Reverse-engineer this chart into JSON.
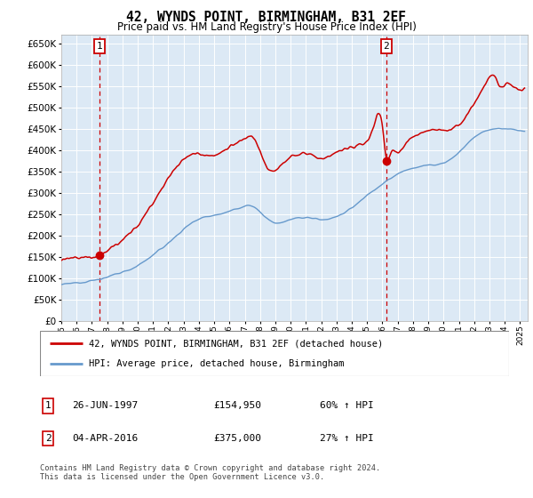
{
  "title": "42, WYNDS POINT, BIRMINGHAM, B31 2EF",
  "subtitle": "Price paid vs. HM Land Registry's House Price Index (HPI)",
  "yticks": [
    0,
    50000,
    100000,
    150000,
    200000,
    250000,
    300000,
    350000,
    400000,
    450000,
    500000,
    550000,
    600000,
    650000
  ],
  "ylim": [
    0,
    670000
  ],
  "xlim_start": 1995.0,
  "xlim_end": 2025.5,
  "background_color": "#dce9f5",
  "sale1_date": 1997.49,
  "sale1_price": 154950,
  "sale2_date": 2016.26,
  "sale2_price": 375000,
  "sale1_label": "26-JUN-1997",
  "sale1_amount": "£154,950",
  "sale1_hpi": "60% ↑ HPI",
  "sale2_label": "04-APR-2016",
  "sale2_amount": "£375,000",
  "sale2_hpi": "27% ↑ HPI",
  "legend_line1": "42, WYNDS POINT, BIRMINGHAM, B31 2EF (detached house)",
  "legend_line2": "HPI: Average price, detached house, Birmingham",
  "footer": "Contains HM Land Registry data © Crown copyright and database right 2024.\nThis data is licensed under the Open Government Licence v3.0.",
  "red_color": "#cc0000",
  "blue_color": "#6699cc",
  "seed": 12345,
  "blue_keypoints": [
    [
      1995.0,
      85000
    ],
    [
      1996.0,
      90000
    ],
    [
      1997.0,
      95000
    ],
    [
      1998.0,
      103000
    ],
    [
      1999.0,
      115000
    ],
    [
      2000.0,
      130000
    ],
    [
      2001.0,
      155000
    ],
    [
      2002.0,
      183000
    ],
    [
      2003.0,
      215000
    ],
    [
      2004.0,
      240000
    ],
    [
      2005.0,
      248000
    ],
    [
      2006.0,
      258000
    ],
    [
      2007.0,
      268000
    ],
    [
      2007.5,
      270000
    ],
    [
      2008.0,
      255000
    ],
    [
      2009.0,
      230000
    ],
    [
      2010.0,
      237000
    ],
    [
      2011.0,
      243000
    ],
    [
      2012.0,
      238000
    ],
    [
      2013.0,
      245000
    ],
    [
      2014.0,
      265000
    ],
    [
      2015.0,
      295000
    ],
    [
      2016.0,
      320000
    ],
    [
      2017.0,
      345000
    ],
    [
      2018.0,
      358000
    ],
    [
      2019.0,
      365000
    ],
    [
      2020.0,
      370000
    ],
    [
      2021.0,
      395000
    ],
    [
      2022.0,
      430000
    ],
    [
      2023.0,
      448000
    ],
    [
      2024.0,
      450000
    ],
    [
      2025.3,
      445000
    ]
  ],
  "red_keypoints": [
    [
      1995.0,
      143000
    ],
    [
      1996.0,
      148000
    ],
    [
      1997.0,
      150000
    ],
    [
      1997.49,
      154950
    ],
    [
      1998.0,
      165000
    ],
    [
      1999.0,
      190000
    ],
    [
      2000.0,
      225000
    ],
    [
      2001.0,
      278000
    ],
    [
      2002.0,
      335000
    ],
    [
      2003.0,
      378000
    ],
    [
      2004.0,
      393000
    ],
    [
      2005.0,
      388000
    ],
    [
      2006.0,
      408000
    ],
    [
      2007.0,
      426000
    ],
    [
      2007.5,
      430000
    ],
    [
      2008.0,
      400000
    ],
    [
      2008.5,
      358000
    ],
    [
      2009.0,
      355000
    ],
    [
      2009.5,
      370000
    ],
    [
      2010.0,
      385000
    ],
    [
      2010.5,
      390000
    ],
    [
      2011.0,
      395000
    ],
    [
      2011.5,
      388000
    ],
    [
      2012.0,
      378000
    ],
    [
      2012.5,
      385000
    ],
    [
      2013.0,
      395000
    ],
    [
      2013.5,
      400000
    ],
    [
      2014.0,
      405000
    ],
    [
      2014.5,
      415000
    ],
    [
      2015.0,
      420000
    ],
    [
      2015.5,
      465000
    ],
    [
      2016.0,
      460000
    ],
    [
      2016.26,
      375000
    ],
    [
      2016.5,
      390000
    ],
    [
      2017.0,
      395000
    ],
    [
      2017.5,
      415000
    ],
    [
      2018.0,
      430000
    ],
    [
      2018.5,
      440000
    ],
    [
      2019.0,
      445000
    ],
    [
      2019.5,
      450000
    ],
    [
      2020.0,
      445000
    ],
    [
      2020.5,
      450000
    ],
    [
      2021.0,
      460000
    ],
    [
      2021.5,
      480000
    ],
    [
      2022.0,
      510000
    ],
    [
      2022.5,
      540000
    ],
    [
      2023.0,
      570000
    ],
    [
      2023.3,
      575000
    ],
    [
      2023.5,
      560000
    ],
    [
      2023.8,
      545000
    ],
    [
      2024.0,
      555000
    ],
    [
      2024.5,
      548000
    ],
    [
      2025.0,
      542000
    ],
    [
      2025.3,
      540000
    ]
  ]
}
